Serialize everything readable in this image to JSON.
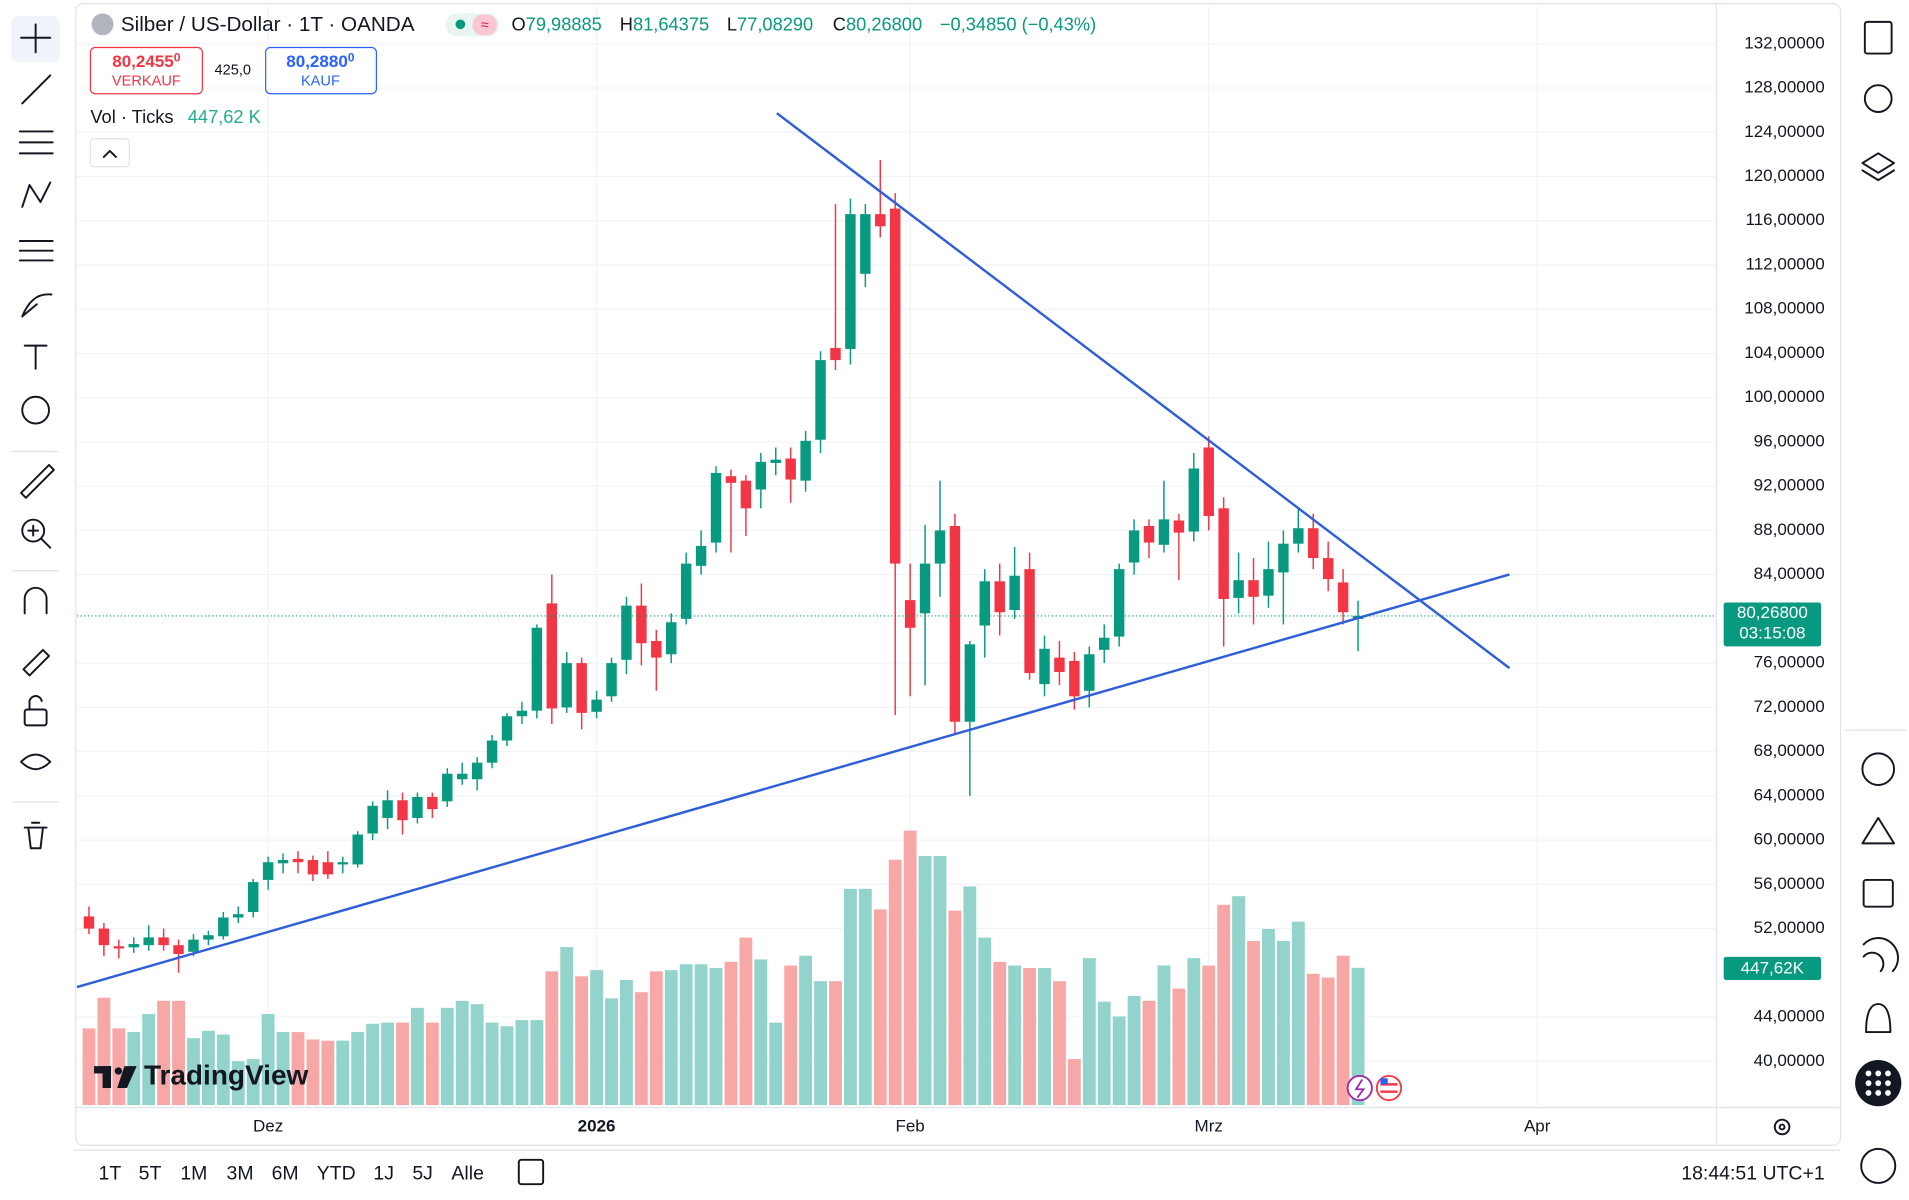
{
  "header": {
    "title": "Silber / US-Dollar · 1T · OANDA",
    "ohlc": [
      {
        "key": "O",
        "value": "79,98885"
      },
      {
        "key": "H",
        "value": "81,64375"
      },
      {
        "key": "L",
        "value": "77,08290"
      },
      {
        "key": "C",
        "value": "80,26800"
      }
    ],
    "change": "−0,34850 (−0,43%)",
    "sell": {
      "price": "80,2455",
      "pip": "0",
      "label": "VERKAUF"
    },
    "spread": "425,0",
    "buy": {
      "price": "80,2880",
      "pip": "0",
      "label": "KAUF"
    },
    "volume_title": "Vol · Ticks",
    "volume_value": "447,62 K"
  },
  "chart_data": {
    "type": "candlestick",
    "up_color": "#089981",
    "down_color": "#f23645",
    "open": [
      53.1,
      52,
      50.4,
      50.3,
      50.5,
      51.2,
      50.5,
      49.9,
      51,
      51.3,
      53,
      53.5,
      56.4,
      57.9,
      58.3,
      58.2,
      58,
      57.8,
      57.8,
      60.6,
      62,
      63.6,
      62,
      63.9,
      63.5,
      65.5,
      65.5,
      67,
      69,
      71.2,
      71.7,
      81.4,
      72,
      76,
      71.6,
      73,
      76.3,
      81.2,
      78,
      76.8,
      80,
      84.8,
      86.9,
      92.9,
      92.5,
      91.7,
      94.1,
      94.5,
      92.5,
      96.2,
      104.5,
      104.4,
      111.2,
      116.6,
      117.1,
      81.7,
      80.5,
      85,
      88.4,
      70.7,
      79.4,
      83.4,
      80.8,
      84.5,
      74.1,
      76.5,
      76.2,
      73.5,
      77.2,
      78.4,
      85.1,
      88.4,
      86.7,
      88.9,
      87.9,
      95.5,
      90,
      81.9,
      83.5,
      82.1,
      84.2,
      86.8,
      88.2,
      85.5,
      83.3,
      79.98885
    ],
    "high": [
      54,
      52.5,
      51,
      51.2,
      52.3,
      52,
      51,
      51.5,
      51.8,
      53.5,
      54,
      56.5,
      58.5,
      58.8,
      59,
      58.6,
      59,
      58.5,
      60.8,
      63.5,
      64.5,
      64.3,
      64.3,
      64.3,
      66.5,
      67,
      67.5,
      69.5,
      71.5,
      72.5,
      79.5,
      84,
      77,
      76.5,
      73.5,
      76.5,
      82,
      83.2,
      79,
      80.5,
      86,
      88,
      93.8,
      93.5,
      93,
      95,
      95.5,
      95.5,
      97,
      104.2,
      117.5,
      118,
      117.5,
      121.5,
      118.5,
      85,
      88.5,
      92.5,
      89.5,
      78,
      84.5,
      85,
      86.5,
      86,
      78.5,
      78,
      77,
      77.5,
      79.5,
      85,
      89,
      89,
      92.5,
      89.5,
      95,
      96.5,
      91,
      86,
      85.5,
      87,
      88,
      90,
      89.5,
      87,
      84.5,
      81.64375
    ],
    "low": [
      51.5,
      49.5,
      49.3,
      49.8,
      50,
      50,
      48,
      49.5,
      50.5,
      51,
      52.5,
      53,
      55.5,
      57,
      57,
      56.3,
      56.5,
      57,
      57.5,
      60,
      61,
      60.5,
      61.5,
      62,
      63,
      65,
      64.5,
      66.5,
      68.5,
      70.5,
      71,
      70.5,
      71.5,
      70,
      71,
      72.5,
      75,
      75.8,
      73.5,
      76,
      79.5,
      84,
      86,
      86,
      87.5,
      90,
      93,
      90.5,
      91.5,
      95,
      102.5,
      103,
      110,
      114.5,
      71.3,
      73,
      74,
      82,
      69.5,
      64,
      76.5,
      78.5,
      80,
      74.5,
      73,
      74,
      71.8,
      72,
      76,
      77.5,
      84,
      85.5,
      86,
      83.5,
      87,
      88,
      77.5,
      80.5,
      79.5,
      81,
      79.5,
      86,
      84.5,
      82.5,
      79.5,
      77.0829
    ],
    "close": [
      52,
      50.5,
      50.2,
      50.6,
      51.2,
      50.5,
      49.7,
      51,
      51.4,
      53,
      53.3,
      56.2,
      58,
      58.2,
      58,
      56.9,
      56.9,
      58,
      60.5,
      63.1,
      63.6,
      61.8,
      63.9,
      62.8,
      66,
      66,
      67,
      69,
      71.2,
      71.7,
      79.2,
      71.9,
      76,
      71.5,
      72.7,
      76,
      81.2,
      77.8,
      76.5,
      79.7,
      85,
      86.6,
      93.2,
      92.3,
      90,
      94.2,
      94.4,
      92.6,
      96.1,
      103.4,
      103.4,
      116.6,
      116.6,
      115.5,
      85,
      79.2,
      85,
      88,
      70.7,
      77.7,
      83.4,
      80.6,
      83.9,
      75.1,
      77.3,
      75.2,
      73,
      76.8,
      78.3,
      84.5,
      88,
      86.9,
      89,
      87.8,
      93.6,
      89.3,
      81.8,
      83.5,
      82,
      84.5,
      86.8,
      88.2,
      85.5,
      83.6,
      80.6,
      80.268
    ],
    "volume": {
      "values": [
        250,
        350,
        250,
        238,
        297,
        340,
        340,
        218,
        242,
        230,
        143,
        150,
        297,
        238,
        238,
        214,
        210,
        210,
        238,
        265,
        269,
        269,
        317,
        269,
        317,
        340,
        329,
        269,
        257,
        277,
        277,
        436,
        515,
        420,
        440,
        348,
        408,
        368,
        436,
        440,
        459,
        459,
        447,
        467,
        546,
        475,
        269,
        455,
        487,
        404,
        404,
        705,
        705,
        638,
        800,
        895,
        812,
        812,
        634,
        713,
        546,
        467,
        455,
        447,
        447,
        404,
        150,
        479,
        337,
        289,
        356,
        340,
        455,
        380,
        479,
        455,
        653,
        681,
        535,
        574,
        535,
        598,
        428,
        416,
        487,
        447.62
      ],
      "ylim": [
        0,
        1000
      ],
      "up_color": "#92d3cb",
      "down_color": "#f7a8a6",
      "last_label": "447,62K"
    },
    "last_price": {
      "value": 80.268,
      "label": "80,26800"
    },
    "countdown": "03:15:08",
    "ylim": [
      36.04,
      135.41
    ],
    "yticks": [
      {
        "value": 40,
        "label": "40,00000"
      },
      {
        "value": 44,
        "label": "44,00000"
      },
      {
        "value": 52,
        "label": "52,00000"
      },
      {
        "value": 56,
        "label": "56,00000"
      },
      {
        "value": 60,
        "label": "60,00000"
      },
      {
        "value": 64,
        "label": "64,00000"
      },
      {
        "value": 68,
        "label": "68,00000"
      },
      {
        "value": 72,
        "label": "72,00000"
      },
      {
        "value": 76,
        "label": "76,00000"
      },
      {
        "value": 84,
        "label": "84,00000"
      },
      {
        "value": 88,
        "label": "88,00000"
      },
      {
        "value": 92,
        "label": "92,00000"
      },
      {
        "value": 96,
        "label": "96,00000"
      },
      {
        "value": 100,
        "label": "100,00000"
      },
      {
        "value": 104,
        "label": "104,00000"
      },
      {
        "value": 108,
        "label": "108,00000"
      },
      {
        "value": 112,
        "label": "112,00000"
      },
      {
        "value": 116,
        "label": "116,00000"
      },
      {
        "value": 120,
        "label": "120,00000"
      },
      {
        "value": 124,
        "label": "124,00000"
      },
      {
        "value": 128,
        "label": "128,00000"
      },
      {
        "value": 132,
        "label": "132,00000"
      }
    ],
    "xlim": [
      -0.8,
      109
    ],
    "xticks": [
      {
        "value": 12,
        "label": "Dez"
      },
      {
        "value": 34,
        "label": "2026",
        "bold": true
      },
      {
        "value": 55,
        "label": "Feb"
      },
      {
        "value": 75,
        "label": "Mrz"
      },
      {
        "value": 97,
        "label": "Apr"
      }
    ],
    "grid": true
  },
  "watermark": "TradingView",
  "timeframes": [
    "1T",
    "5T",
    "1M",
    "3M",
    "6M",
    "YTD",
    "1J",
    "5J",
    "Alle"
  ],
  "clock": "18:44:51 UTC+1"
}
